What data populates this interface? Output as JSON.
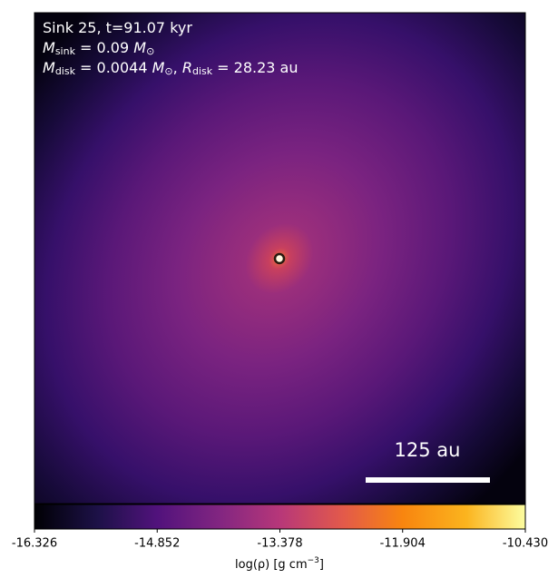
{
  "chart_data": {
    "type": "image",
    "annotations": [
      [
        "Sink 25, t=91.07 kyr"
      ],
      [
        "M",
        "sink",
        " = 0.09 ",
        "M",
        "⊙"
      ],
      [
        "M",
        "disk",
        " = 0.0044 ",
        "M",
        "⊙",
        ", ",
        "R",
        "disk",
        " = 28.23 au"
      ]
    ],
    "scalebar_label": "125 au",
    "colorbar": {
      "label": "log(ρ) [g cm",
      "label_exp": "−3",
      "label_end": "]",
      "clim": [
        -16.326,
        -10.43
      ],
      "ticks": [
        -16.326,
        -14.852,
        -13.378,
        -11.904,
        {
          "value": -10.43,
          "label": "-10.430"
        }
      ]
    }
  }
}
